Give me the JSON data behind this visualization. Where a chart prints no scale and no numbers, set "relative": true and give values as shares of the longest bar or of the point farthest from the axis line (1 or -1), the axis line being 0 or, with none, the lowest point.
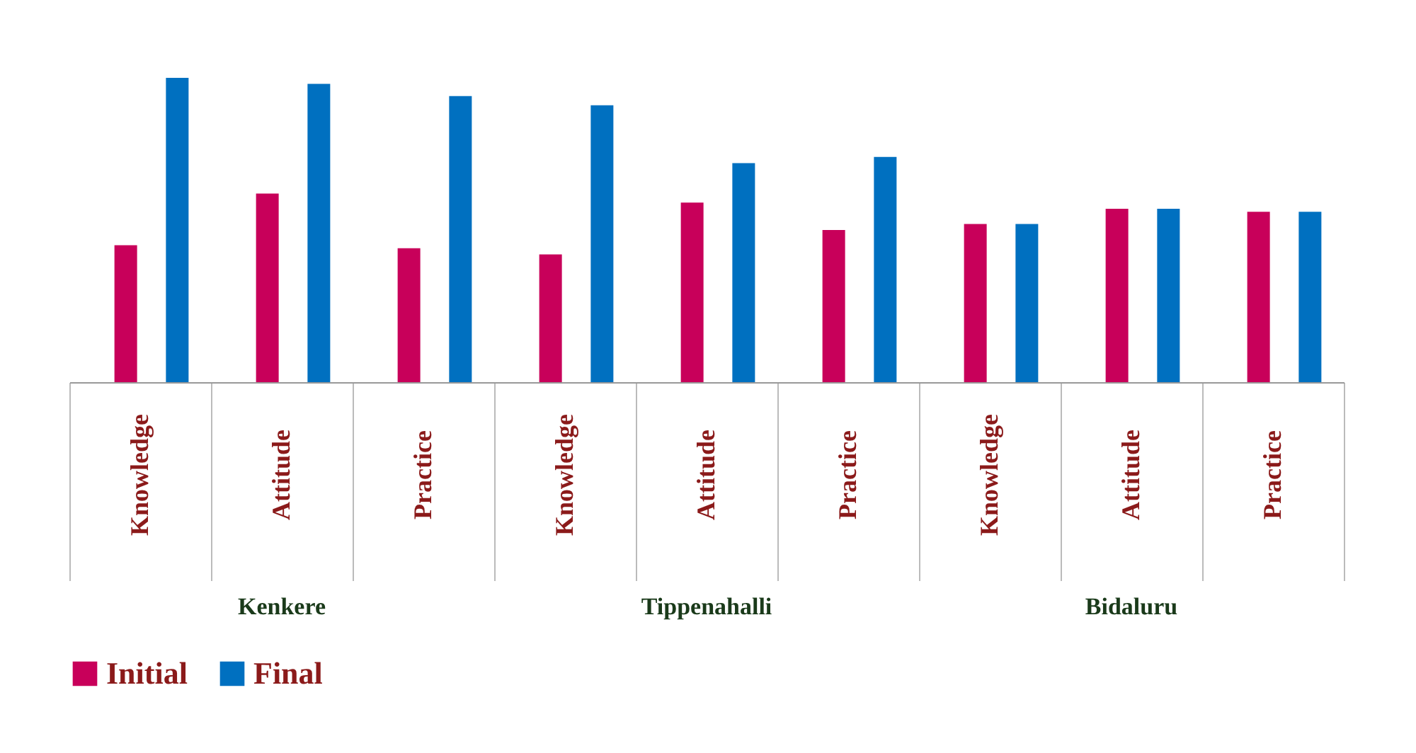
{
  "chart_data": {
    "type": "bar",
    "relative": true,
    "categories": [
      "Knowledge",
      "Attitude",
      "Practice",
      "Knowledge",
      "Attitude",
      "Practice",
      "Knowledge",
      "Attitude",
      "Practice"
    ],
    "series": [
      {
        "name": "Initial",
        "color": "#c8005a",
        "values": [
          0.45,
          0.62,
          0.44,
          0.42,
          0.59,
          0.5,
          0.52,
          0.57,
          0.56
        ]
      },
      {
        "name": "Final",
        "color": "#0070c0",
        "values": [
          1,
          0.98,
          0.94,
          0.91,
          0.72,
          0.74,
          0.52,
          0.57,
          0.56
        ]
      }
    ],
    "annotations": [
      "Kenkere",
      "Tippenahalli",
      "Bidaluru"
    ],
    "legend": "bottom",
    "grid": false
  }
}
